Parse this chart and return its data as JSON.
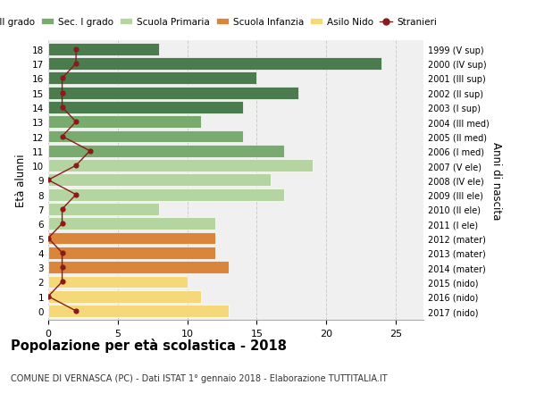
{
  "ages": [
    18,
    17,
    16,
    15,
    14,
    13,
    12,
    11,
    10,
    9,
    8,
    7,
    6,
    5,
    4,
    3,
    2,
    1,
    0
  ],
  "right_labels": [
    "1999 (V sup)",
    "2000 (IV sup)",
    "2001 (III sup)",
    "2002 (II sup)",
    "2003 (I sup)",
    "2004 (III med)",
    "2005 (II med)",
    "2006 (I med)",
    "2007 (V ele)",
    "2008 (IV ele)",
    "2009 (III ele)",
    "2010 (II ele)",
    "2011 (I ele)",
    "2012 (mater)",
    "2013 (mater)",
    "2014 (mater)",
    "2015 (nido)",
    "2016 (nido)",
    "2017 (nido)"
  ],
  "bar_values": [
    8,
    24,
    15,
    18,
    14,
    11,
    14,
    17,
    19,
    16,
    17,
    8,
    12,
    12,
    12,
    13,
    10,
    11,
    13
  ],
  "bar_colors": [
    "#4a7c4e",
    "#4a7c4e",
    "#4a7c4e",
    "#4a7c4e",
    "#4a7c4e",
    "#7aab6e",
    "#7aab6e",
    "#7aab6e",
    "#b5d5a0",
    "#b5d5a0",
    "#b5d5a0",
    "#b5d5a0",
    "#b5d5a0",
    "#d9853b",
    "#d9853b",
    "#d9853b",
    "#f5d87a",
    "#f5d87a",
    "#f5d87a"
  ],
  "stranieri_values": [
    2,
    2,
    1,
    1,
    1,
    2,
    1,
    3,
    2,
    0,
    2,
    1,
    1,
    0,
    1,
    1,
    1,
    0,
    2
  ],
  "legend_labels": [
    "Sec. II grado",
    "Sec. I grado",
    "Scuola Primaria",
    "Scuola Infanzia",
    "Asilo Nido",
    "Stranieri"
  ],
  "legend_colors": [
    "#4a7c4e",
    "#7aab6e",
    "#b5d5a0",
    "#d9853b",
    "#f5d87a",
    "#9b1a1a"
  ],
  "ylabel": "Età alunni",
  "right_ylabel": "Anni di nascita",
  "title": "Popolazione per età scolastica - 2018",
  "subtitle": "COMUNE DI VERNASCA (PC) - Dati ISTAT 1° gennaio 2018 - Elaborazione TUTTITALIA.IT",
  "xlim": [
    0,
    27
  ],
  "plot_bg": "#f0f0f0",
  "fig_bg": "#ffffff",
  "bar_edge_color": "white",
  "grid_color": "#cccccc",
  "stranieri_line_color": "#8b1a1a",
  "stranieri_dot_color": "#8b1a1a"
}
